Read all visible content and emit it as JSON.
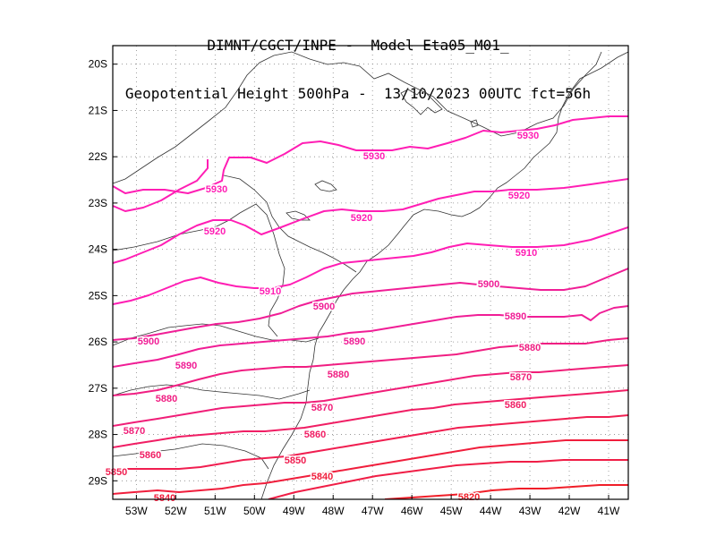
{
  "header": {
    "line1": "DIMNT/CGCT/INPE -  Model Eta05_M01_",
    "line2": "Geopotential Height 500hPa -  13/10/2023 00UTC fct=56h"
  },
  "chart_data": {
    "type": "map-contour",
    "variable": "Geopotential Height 500hPa",
    "lon_range": [
      -53.6,
      -40.5
    ],
    "lat_range": [
      -29.4,
      -19.6
    ],
    "lon_ticks": [
      "53W",
      "52W",
      "51W",
      "50W",
      "49W",
      "48W",
      "47W",
      "46W",
      "45W",
      "44W",
      "43W",
      "42W",
      "41W"
    ],
    "lat_ticks": [
      "20S",
      "21S",
      "22S",
      "23S",
      "24S",
      "25S",
      "26S",
      "27S",
      "28S",
      "29S"
    ],
    "grid": "dotted",
    "contours": [
      {
        "value": 5930,
        "label": "5930",
        "color": "#ff1eb4"
      },
      {
        "value": 5920,
        "label": "5920",
        "color": "#ff1eb4"
      },
      {
        "value": 5910,
        "label": "5910",
        "color": "#ff1eb4"
      },
      {
        "value": 5900,
        "label": "5900",
        "color": "#f01e96"
      },
      {
        "value": 5890,
        "label": "5890",
        "color": "#f01e96"
      },
      {
        "value": 5880,
        "label": "5880",
        "color": "#f01e82"
      },
      {
        "value": 5870,
        "label": "5870",
        "color": "#f01e78"
      },
      {
        "value": 5860,
        "label": "5860",
        "color": "#f01e64"
      },
      {
        "value": 5850,
        "label": "5850",
        "color": "#f01e50"
      },
      {
        "value": 5840,
        "label": "5840",
        "color": "#f01e3c"
      },
      {
        "value": 5820,
        "label": "5820",
        "color": "#f01e28"
      }
    ]
  }
}
